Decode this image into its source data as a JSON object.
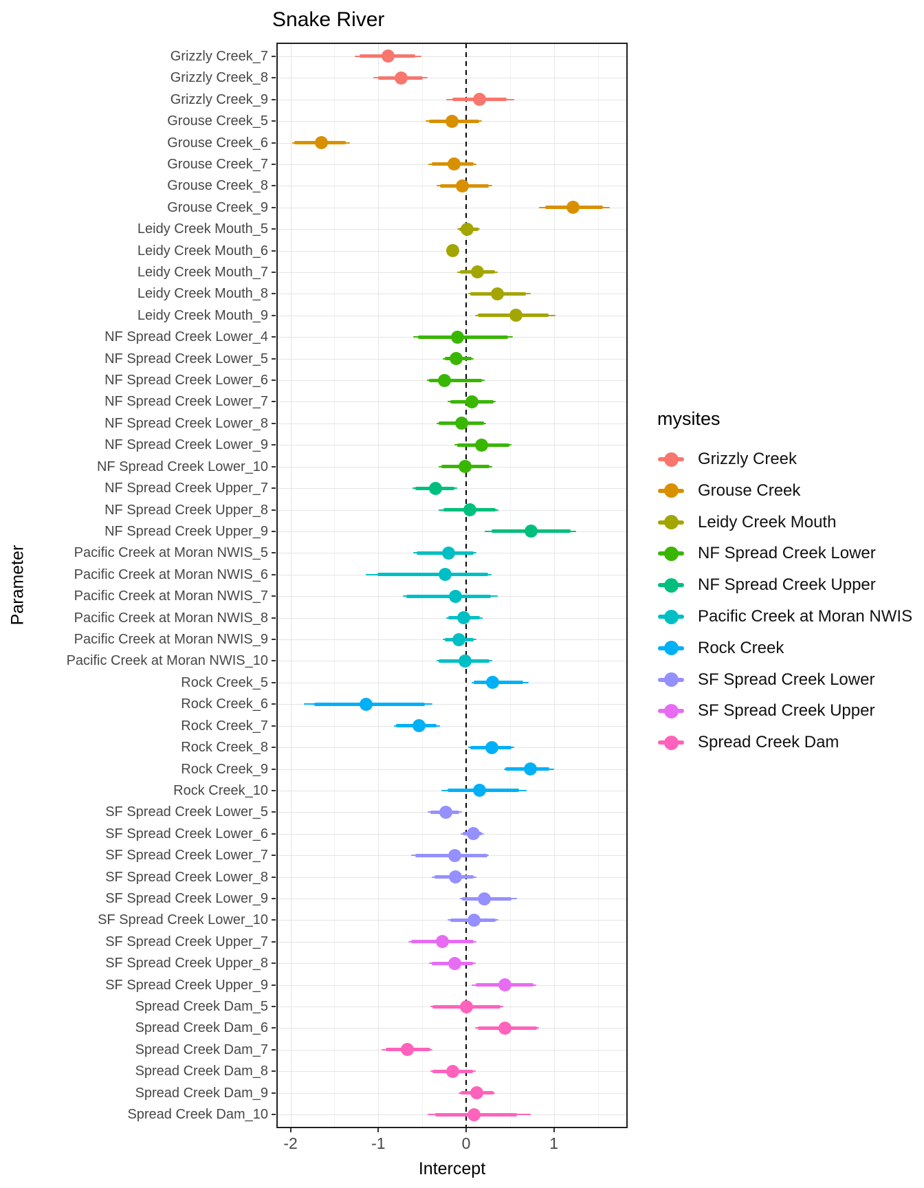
{
  "title": "Snake River",
  "x_axis": {
    "label": "Intercept",
    "major_ticks": [
      {
        "label": "-2",
        "value": -2
      },
      {
        "label": "-1",
        "value": -1
      },
      {
        "label": "0",
        "value": 0
      },
      {
        "label": "1",
        "value": 1
      }
    ],
    "minor_ticks": [
      -1.5,
      -0.5,
      0.5,
      1.5
    ],
    "domain": [
      -2.153,
      1.832
    ]
  },
  "y_axis": {
    "label": "Parameter"
  },
  "legend": {
    "title": "mysites",
    "items": [
      {
        "label": "Grizzly Creek",
        "color": "#F8766D"
      },
      {
        "label": "Grouse Creek",
        "color": "#D89000"
      },
      {
        "label": "Leidy Creek Mouth",
        "color": "#A3A500"
      },
      {
        "label": "NF Spread Creek Lower",
        "color": "#39B600"
      },
      {
        "label": "NF Spread Creek Upper",
        "color": "#00BF7D"
      },
      {
        "label": "Pacific Creek at Moran NWIS",
        "color": "#00BFC4"
      },
      {
        "label": "Rock Creek",
        "color": "#00B0F6"
      },
      {
        "label": "SF Spread Creek Lower",
        "color": "#9590FF"
      },
      {
        "label": "SF Spread Creek Upper",
        "color": "#E76BF3"
      },
      {
        "label": "Spread Creek Dam",
        "color": "#FF62BC"
      }
    ]
  },
  "chart_data": {
    "type": "pointrange",
    "title": "Snake River",
    "xlabel": "Intercept",
    "ylabel": "Parameter",
    "xlim": [
      -2.153,
      1.832
    ],
    "zero_line": 0,
    "grid": true,
    "legend_position": "right",
    "rows": [
      {
        "label": "Grizzly Creek_7",
        "site": "Grizzly Creek",
        "x": -0.89,
        "thick": [
          -1.21,
          -0.58
        ],
        "thin": [
          -1.27,
          -0.51
        ]
      },
      {
        "label": "Grizzly Creek_8",
        "site": "Grizzly Creek",
        "x": -0.74,
        "thick": [
          -1.0,
          -0.49
        ],
        "thin": [
          -1.06,
          -0.44
        ]
      },
      {
        "label": "Grizzly Creek_9",
        "site": "Grizzly Creek",
        "x": 0.15,
        "thick": [
          -0.16,
          0.46
        ],
        "thin": [
          -0.23,
          0.55
        ]
      },
      {
        "label": "Grouse Creek_5",
        "site": "Grouse Creek",
        "x": -0.16,
        "thick": [
          -0.42,
          0.15
        ],
        "thin": [
          -0.46,
          0.18
        ]
      },
      {
        "label": "Grouse Creek_6",
        "site": "Grouse Creek",
        "x": -1.65,
        "thick": [
          -1.96,
          -1.37
        ],
        "thin": [
          -1.98,
          -1.32
        ]
      },
      {
        "label": "Grouse Creek_7",
        "site": "Grouse Creek",
        "x": -0.14,
        "thick": [
          -0.39,
          0.09
        ],
        "thin": [
          -0.43,
          0.12
        ]
      },
      {
        "label": "Grouse Creek_8",
        "site": "Grouse Creek",
        "x": -0.04,
        "thick": [
          -0.3,
          0.26
        ],
        "thin": [
          -0.34,
          0.3
        ]
      },
      {
        "label": "Grouse Creek_9",
        "site": "Grouse Creek",
        "x": 1.22,
        "thick": [
          0.9,
          1.56
        ],
        "thin": [
          0.83,
          1.64
        ]
      },
      {
        "label": "Leidy Creek Mouth_5",
        "site": "Leidy Creek Mouth",
        "x": 0.01,
        "thick": [
          -0.08,
          0.14
        ],
        "thin": [
          -0.1,
          0.16
        ]
      },
      {
        "label": "Leidy Creek Mouth_6",
        "site": "Leidy Creek Mouth",
        "x": -0.15,
        "thick": [
          -0.2,
          -0.1
        ],
        "thin": [
          -0.22,
          -0.08
        ]
      },
      {
        "label": "Leidy Creek Mouth_7",
        "site": "Leidy Creek Mouth",
        "x": 0.13,
        "thick": [
          -0.07,
          0.33
        ],
        "thin": [
          -0.1,
          0.36
        ]
      },
      {
        "label": "Leidy Creek Mouth_8",
        "site": "Leidy Creek Mouth",
        "x": 0.36,
        "thick": [
          0.05,
          0.68
        ],
        "thin": [
          0.02,
          0.74
        ]
      },
      {
        "label": "Leidy Creek Mouth_9",
        "site": "Leidy Creek Mouth",
        "x": 0.57,
        "thick": [
          0.13,
          0.94
        ],
        "thin": [
          0.1,
          1.02
        ]
      },
      {
        "label": "NF Spread Creek Lower_4",
        "site": "NF Spread Creek Lower",
        "x": -0.1,
        "thick": [
          -0.55,
          0.48
        ],
        "thin": [
          -0.6,
          0.53
        ]
      },
      {
        "label": "NF Spread Creek Lower_5",
        "site": "NF Spread Creek Lower",
        "x": -0.11,
        "thick": [
          -0.24,
          0.06
        ],
        "thin": [
          -0.27,
          0.09
        ]
      },
      {
        "label": "NF Spread Creek Lower_6",
        "site": "NF Spread Creek Lower",
        "x": -0.25,
        "thick": [
          -0.42,
          0.18
        ],
        "thin": [
          -0.45,
          0.21
        ]
      },
      {
        "label": "NF Spread Creek Lower_7",
        "site": "NF Spread Creek Lower",
        "x": 0.07,
        "thick": [
          -0.18,
          0.31
        ],
        "thin": [
          -0.21,
          0.34
        ]
      },
      {
        "label": "NF Spread Creek Lower_8",
        "site": "NF Spread Creek Lower",
        "x": -0.05,
        "thick": [
          -0.31,
          0.2
        ],
        "thin": [
          -0.34,
          0.23
        ]
      },
      {
        "label": "NF Spread Creek Lower_9",
        "site": "NF Spread Creek Lower",
        "x": 0.18,
        "thick": [
          -0.1,
          0.49
        ],
        "thin": [
          -0.13,
          0.52
        ]
      },
      {
        "label": "NF Spread Creek Lower_10",
        "site": "NF Spread Creek Lower",
        "x": -0.01,
        "thick": [
          -0.28,
          0.27
        ],
        "thin": [
          -0.31,
          0.3
        ]
      },
      {
        "label": "NF Spread Creek Upper_7",
        "site": "NF Spread Creek Upper",
        "x": -0.35,
        "thick": [
          -0.58,
          -0.13
        ],
        "thin": [
          -0.61,
          -0.1
        ]
      },
      {
        "label": "NF Spread Creek Upper_8",
        "site": "NF Spread Creek Upper",
        "x": 0.04,
        "thick": [
          -0.26,
          0.34
        ],
        "thin": [
          -0.31,
          0.37
        ]
      },
      {
        "label": "NF Spread Creek Upper_9",
        "site": "NF Spread Creek Upper",
        "x": 0.74,
        "thick": [
          0.29,
          1.19
        ],
        "thin": [
          0.21,
          1.25
        ]
      },
      {
        "label": "Pacific Creek at Moran NWIS_5",
        "site": "Pacific Creek at Moran NWIS",
        "x": -0.2,
        "thick": [
          -0.56,
          0.09
        ],
        "thin": [
          -0.6,
          0.12
        ]
      },
      {
        "label": "Pacific Creek at Moran NWIS_6",
        "site": "Pacific Creek at Moran NWIS",
        "x": -0.24,
        "thick": [
          -1.01,
          0.25
        ],
        "thin": [
          -1.14,
          0.29
        ]
      },
      {
        "label": "Pacific Creek at Moran NWIS_7",
        "site": "Pacific Creek at Moran NWIS",
        "x": -0.12,
        "thick": [
          -0.68,
          0.28
        ],
        "thin": [
          -0.72,
          0.36
        ]
      },
      {
        "label": "Pacific Creek at Moran NWIS_8",
        "site": "Pacific Creek at Moran NWIS",
        "x": -0.03,
        "thick": [
          -0.2,
          0.16
        ],
        "thin": [
          -0.23,
          0.19
        ]
      },
      {
        "label": "Pacific Creek at Moran NWIS_9",
        "site": "Pacific Creek at Moran NWIS",
        "x": -0.08,
        "thick": [
          -0.24,
          0.09
        ],
        "thin": [
          -0.27,
          0.12
        ]
      },
      {
        "label": "Pacific Creek at Moran NWIS_10",
        "site": "Pacific Creek at Moran NWIS",
        "x": -0.01,
        "thick": [
          -0.31,
          0.27
        ],
        "thin": [
          -0.34,
          0.3
        ]
      },
      {
        "label": "Rock Creek_5",
        "site": "Rock Creek",
        "x": 0.3,
        "thick": [
          0.09,
          0.65
        ],
        "thin": [
          0.06,
          0.71
        ]
      },
      {
        "label": "Rock Creek_6",
        "site": "Rock Creek",
        "x": -1.14,
        "thick": [
          -1.73,
          -0.47
        ],
        "thin": [
          -1.85,
          -0.38
        ]
      },
      {
        "label": "Rock Creek_7",
        "site": "Rock Creek",
        "x": -0.54,
        "thick": [
          -0.8,
          -0.34
        ],
        "thin": [
          -0.82,
          -0.3
        ]
      },
      {
        "label": "Rock Creek_8",
        "site": "Rock Creek",
        "x": 0.29,
        "thick": [
          0.05,
          0.52
        ],
        "thin": [
          0.02,
          0.55
        ]
      },
      {
        "label": "Rock Creek_9",
        "site": "Rock Creek",
        "x": 0.73,
        "thick": [
          0.45,
          0.95
        ],
        "thin": [
          0.43,
          1.0
        ]
      },
      {
        "label": "Rock Creek_10",
        "site": "Rock Creek",
        "x": 0.15,
        "thick": [
          -0.21,
          0.6
        ],
        "thin": [
          -0.28,
          0.69
        ]
      },
      {
        "label": "SF Spread Creek Lower_5",
        "site": "SF Spread Creek Lower",
        "x": -0.23,
        "thick": [
          -0.41,
          -0.08
        ],
        "thin": [
          -0.44,
          -0.05
        ]
      },
      {
        "label": "SF Spread Creek Lower_6",
        "site": "SF Spread Creek Lower",
        "x": 0.08,
        "thick": [
          -0.04,
          0.18
        ],
        "thin": [
          -0.06,
          0.2
        ]
      },
      {
        "label": "SF Spread Creek Lower_7",
        "site": "SF Spread Creek Lower",
        "x": -0.13,
        "thick": [
          -0.58,
          0.24
        ],
        "thin": [
          -0.63,
          0.26
        ]
      },
      {
        "label": "SF Spread Creek Lower_8",
        "site": "SF Spread Creek Lower",
        "x": -0.12,
        "thick": [
          -0.36,
          0.09
        ],
        "thin": [
          -0.39,
          0.12
        ]
      },
      {
        "label": "SF Spread Creek Lower_9",
        "site": "SF Spread Creek Lower",
        "x": 0.21,
        "thick": [
          -0.05,
          0.52
        ],
        "thin": [
          -0.07,
          0.58
        ]
      },
      {
        "label": "SF Spread Creek Lower_10",
        "site": "SF Spread Creek Lower",
        "x": 0.09,
        "thick": [
          -0.18,
          0.34
        ],
        "thin": [
          -0.21,
          0.37
        ]
      },
      {
        "label": "SF Spread Creek Upper_7",
        "site": "SF Spread Creek Upper",
        "x": -0.27,
        "thick": [
          -0.63,
          0.09
        ],
        "thin": [
          -0.66,
          0.12
        ]
      },
      {
        "label": "SF Spread Creek Upper_8",
        "site": "SF Spread Creek Upper",
        "x": -0.13,
        "thick": [
          -0.39,
          0.08
        ],
        "thin": [
          -0.42,
          0.11
        ]
      },
      {
        "label": "SF Spread Creek Upper_9",
        "site": "SF Spread Creek Upper",
        "x": 0.44,
        "thick": [
          0.11,
          0.77
        ],
        "thin": [
          0.06,
          0.8
        ]
      },
      {
        "label": "Spread Creek Dam_5",
        "site": "Spread Creek Dam",
        "x": 0.0,
        "thick": [
          -0.38,
          0.39
        ],
        "thin": [
          -0.41,
          0.42
        ]
      },
      {
        "label": "Spread Creek Dam_6",
        "site": "Spread Creek Dam",
        "x": 0.44,
        "thick": [
          0.13,
          0.81
        ],
        "thin": [
          0.1,
          0.83
        ]
      },
      {
        "label": "Spread Creek Dam_7",
        "site": "Spread Creek Dam",
        "x": -0.67,
        "thick": [
          -0.92,
          -0.41
        ],
        "thin": [
          -0.96,
          -0.38
        ]
      },
      {
        "label": "Spread Creek Dam_8",
        "site": "Spread Creek Dam",
        "x": -0.15,
        "thick": [
          -0.38,
          0.08
        ],
        "thin": [
          -0.41,
          0.11
        ]
      },
      {
        "label": "Spread Creek Dam_9",
        "site": "Spread Creek Dam",
        "x": 0.12,
        "thick": [
          -0.06,
          0.31
        ],
        "thin": [
          -0.09,
          0.33
        ]
      },
      {
        "label": "Spread Creek Dam_10",
        "site": "Spread Creek Dam",
        "x": 0.09,
        "thick": [
          -0.35,
          0.58
        ],
        "thin": [
          -0.44,
          0.74
        ]
      }
    ]
  }
}
